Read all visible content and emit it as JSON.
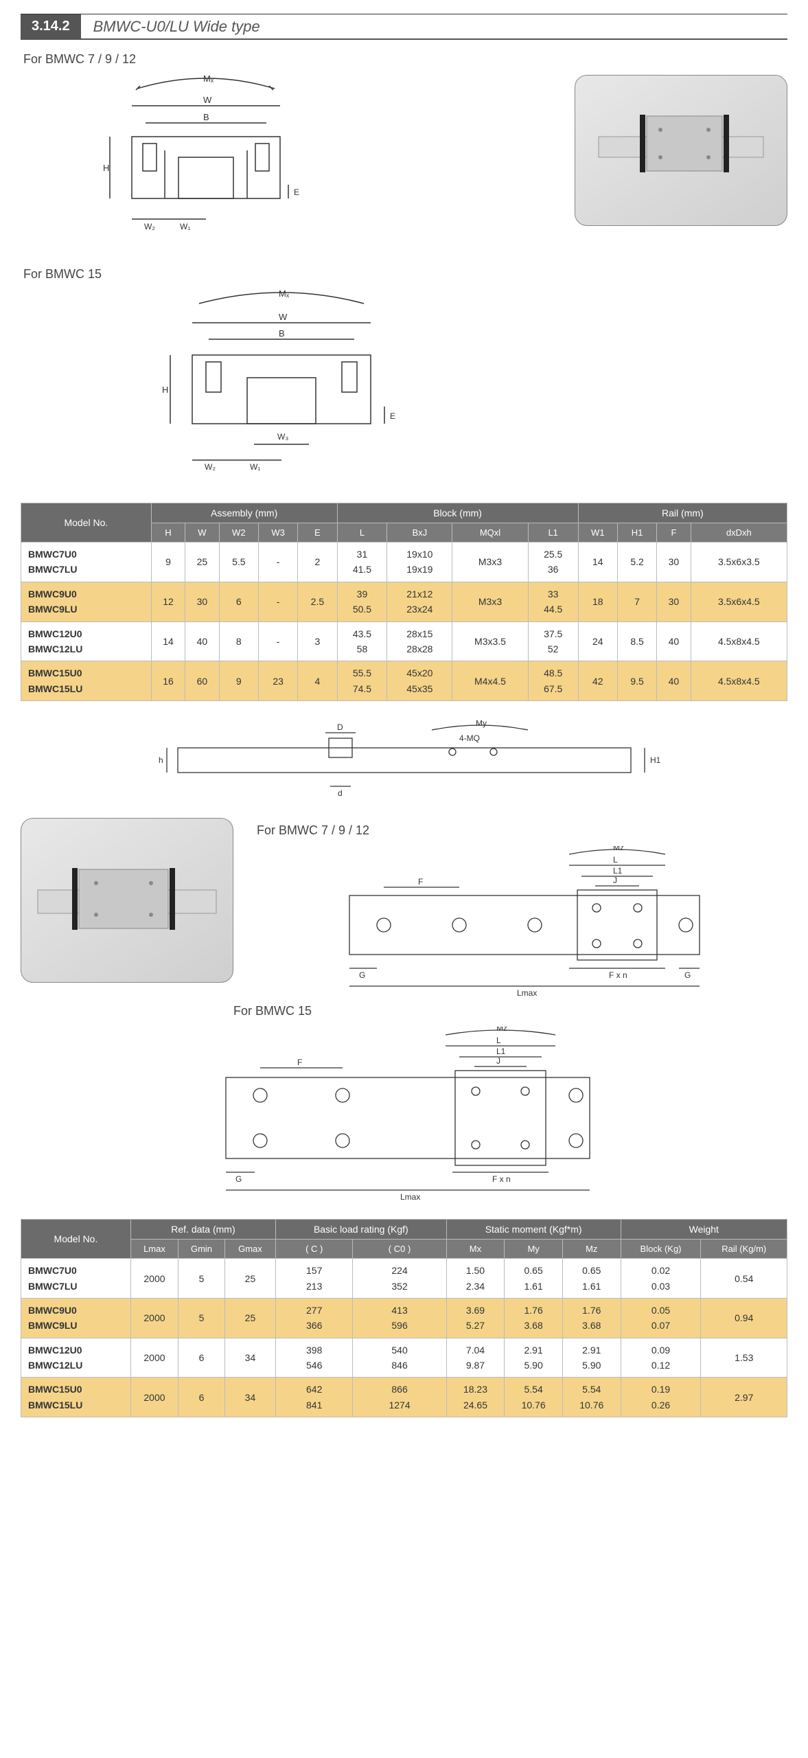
{
  "header": {
    "section_number": "3.14.2",
    "title": "BMWC-U0/LU Wide type"
  },
  "diagrams": {
    "d1_label": "For BMWC 7 / 9 / 12",
    "d2_label": "For BMWC 15",
    "d3_label": "For BMWC 7 / 9 / 12",
    "d4_label": "For BMWC 15",
    "dims_top1": [
      "Mx",
      "W",
      "B",
      "H",
      "W2",
      "W1",
      "E"
    ],
    "dims_top2": [
      "Mx",
      "W",
      "B",
      "H",
      "W2",
      "W3",
      "W1",
      "E"
    ],
    "dims_mid": [
      "D",
      "d",
      "h",
      "4-MQ",
      "My",
      "H1"
    ],
    "dims_side": [
      "Mz",
      "L",
      "L1",
      "J",
      "F",
      "G",
      "F x n",
      "Lmax"
    ]
  },
  "table1": {
    "group_headers": [
      "Model No.",
      "Assembly (mm)",
      "Block (mm)",
      "Rail (mm)"
    ],
    "sub_headers": [
      "H",
      "W",
      "W2",
      "W3",
      "E",
      "L",
      "BxJ",
      "MQxl",
      "L1",
      "W1",
      "H1",
      "F",
      "dxDxh"
    ],
    "rows": [
      {
        "models": [
          "BMWC7U0",
          "BMWC7LU"
        ],
        "H": "9",
        "W": "25",
        "W2": "5.5",
        "W3": "-",
        "E": "2",
        "L": [
          "31",
          "41.5"
        ],
        "BxJ": [
          "19x10",
          "19x19"
        ],
        "MQxl": "M3x3",
        "L1": [
          "25.5",
          "36"
        ],
        "RW1": "14",
        "H1": "5.2",
        "F": "30",
        "dxDxh": "3.5x6x3.5",
        "alt": false
      },
      {
        "models": [
          "BMWC9U0",
          "BMWC9LU"
        ],
        "H": "12",
        "W": "30",
        "W2": "6",
        "W3": "-",
        "E": "2.5",
        "L": [
          "39",
          "50.5"
        ],
        "BxJ": [
          "21x12",
          "23x24"
        ],
        "MQxl": "M3x3",
        "L1": [
          "33",
          "44.5"
        ],
        "RW1": "18",
        "H1": "7",
        "F": "30",
        "dxDxh": "3.5x6x4.5",
        "alt": true
      },
      {
        "models": [
          "BMWC12U0",
          "BMWC12LU"
        ],
        "H": "14",
        "W": "40",
        "W2": "8",
        "W3": "-",
        "E": "3",
        "L": [
          "43.5",
          "58"
        ],
        "BxJ": [
          "28x15",
          "28x28"
        ],
        "MQxl": "M3x3.5",
        "L1": [
          "37.5",
          "52"
        ],
        "RW1": "24",
        "H1": "8.5",
        "F": "40",
        "dxDxh": "4.5x8x4.5",
        "alt": false
      },
      {
        "models": [
          "BMWC15U0",
          "BMWC15LU"
        ],
        "H": "16",
        "W": "60",
        "W2": "9",
        "W3": "23",
        "E": "4",
        "L": [
          "55.5",
          "74.5"
        ],
        "BxJ": [
          "45x20",
          "45x35"
        ],
        "MQxl": "M4x4.5",
        "L1": [
          "48.5",
          "67.5"
        ],
        "RW1": "42",
        "H1": "9.5",
        "F": "40",
        "dxDxh": "4.5x8x4.5",
        "alt": true
      }
    ]
  },
  "table2": {
    "group_headers": [
      "Model No.",
      "Ref. data (mm)",
      "Basic load rating (Kgf)",
      "Static moment (Kgf*m)",
      "Weight"
    ],
    "sub_headers": [
      "Lmax",
      "Gmin",
      "Gmax",
      "( C )",
      "( C0 )",
      "Mx",
      "My",
      "Mz",
      "Block (Kg)",
      "Rail (Kg/m)"
    ],
    "rows": [
      {
        "models": [
          "BMWC7U0",
          "BMWC7LU"
        ],
        "Lmax": "2000",
        "Gmin": "5",
        "Gmax": "25",
        "C": [
          "157",
          "213"
        ],
        "C0": [
          "224",
          "352"
        ],
        "Mx": [
          "1.50",
          "2.34"
        ],
        "My": [
          "0.65",
          "1.61"
        ],
        "Mz": [
          "0.65",
          "1.61"
        ],
        "Block": [
          "0.02",
          "0.03"
        ],
        "Rail": "0.54",
        "alt": false
      },
      {
        "models": [
          "BMWC9U0",
          "BMWC9LU"
        ],
        "Lmax": "2000",
        "Gmin": "5",
        "Gmax": "25",
        "C": [
          "277",
          "366"
        ],
        "C0": [
          "413",
          "596"
        ],
        "Mx": [
          "3.69",
          "5.27"
        ],
        "My": [
          "1.76",
          "3.68"
        ],
        "Mz": [
          "1.76",
          "3.68"
        ],
        "Block": [
          "0.05",
          "0.07"
        ],
        "Rail": "0.94",
        "alt": true
      },
      {
        "models": [
          "BMWC12U0",
          "BMWC12LU"
        ],
        "Lmax": "2000",
        "Gmin": "6",
        "Gmax": "34",
        "C": [
          "398",
          "546"
        ],
        "C0": [
          "540",
          "846"
        ],
        "Mx": [
          "7.04",
          "9.87"
        ],
        "My": [
          "2.91",
          "5.90"
        ],
        "Mz": [
          "2.91",
          "5.90"
        ],
        "Block": [
          "0.09",
          "0.12"
        ],
        "Rail": "1.53",
        "alt": false
      },
      {
        "models": [
          "BMWC15U0",
          "BMWC15LU"
        ],
        "Lmax": "2000",
        "Gmin": "6",
        "Gmax": "34",
        "C": [
          "642",
          "841"
        ],
        "C0": [
          "866",
          "1274"
        ],
        "Mx": [
          "18.23",
          "24.65"
        ],
        "My": [
          "5.54",
          "10.76"
        ],
        "Mz": [
          "5.54",
          "10.76"
        ],
        "Block": [
          "0.19",
          "0.26"
        ],
        "Rail": "2.97",
        "alt": true
      }
    ]
  },
  "colors": {
    "header_bg": "#6b6b6b",
    "alt_row": "#f5d48a",
    "border": "#bbbbbb",
    "section_bg": "#555555"
  }
}
